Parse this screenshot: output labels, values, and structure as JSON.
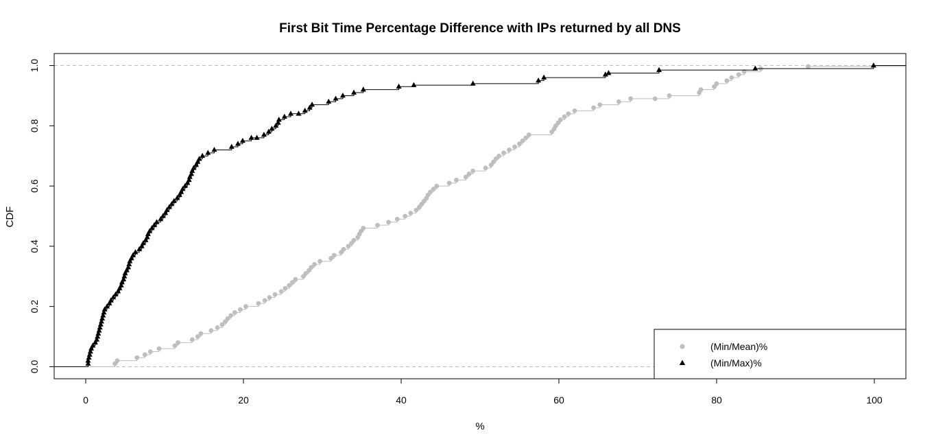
{
  "chart_data": {
    "type": "line",
    "title": "First Bit Time Percentage Difference with IPs returned by all DNS",
    "xlabel": "%",
    "ylabel": "CDF",
    "xlim": [
      -4,
      104
    ],
    "ylim": [
      -0.04,
      1.04
    ],
    "x_ticks": [
      0,
      20,
      40,
      60,
      80,
      100
    ],
    "y_ticks": [
      0.0,
      0.2,
      0.4,
      0.6,
      0.8,
      1.0
    ],
    "x_tick_labels": [
      "0",
      "20",
      "40",
      "60",
      "80",
      "100"
    ],
    "y_tick_labels": [
      "0.0",
      "0.2",
      "0.4",
      "0.6",
      "0.8",
      "1.0"
    ],
    "reference_lines_y": [
      0,
      1
    ],
    "grid": false,
    "legend_position": "bottom-right",
    "series": [
      {
        "name": "(Min/Mean)%",
        "marker": "circle",
        "color": "#bebebe",
        "points": [
          [
            3.7,
            0.01
          ],
          [
            4.0,
            0.02
          ],
          [
            6.5,
            0.03
          ],
          [
            7.5,
            0.04
          ],
          [
            8.2,
            0.05
          ],
          [
            9.3,
            0.06
          ],
          [
            11.3,
            0.07
          ],
          [
            11.7,
            0.08
          ],
          [
            13.5,
            0.09
          ],
          [
            14.2,
            0.1
          ],
          [
            14.6,
            0.11
          ],
          [
            15.9,
            0.12
          ],
          [
            16.7,
            0.13
          ],
          [
            17.3,
            0.14
          ],
          [
            17.7,
            0.15
          ],
          [
            18.0,
            0.16
          ],
          [
            18.4,
            0.17
          ],
          [
            18.9,
            0.18
          ],
          [
            19.6,
            0.19
          ],
          [
            20.3,
            0.2
          ],
          [
            21.9,
            0.21
          ],
          [
            22.7,
            0.22
          ],
          [
            23.3,
            0.23
          ],
          [
            24.0,
            0.24
          ],
          [
            24.8,
            0.25
          ],
          [
            25.3,
            0.26
          ],
          [
            25.8,
            0.27
          ],
          [
            26.2,
            0.28
          ],
          [
            26.6,
            0.29
          ],
          [
            27.6,
            0.3
          ],
          [
            27.9,
            0.31
          ],
          [
            28.3,
            0.32
          ],
          [
            28.6,
            0.33
          ],
          [
            29.0,
            0.34
          ],
          [
            29.7,
            0.35
          ],
          [
            31.1,
            0.36
          ],
          [
            31.5,
            0.37
          ],
          [
            32.4,
            0.38
          ],
          [
            32.7,
            0.39
          ],
          [
            33.3,
            0.4
          ],
          [
            33.7,
            0.41
          ],
          [
            34.0,
            0.42
          ],
          [
            34.5,
            0.43
          ],
          [
            34.7,
            0.44
          ],
          [
            34.9,
            0.45
          ],
          [
            35.2,
            0.46
          ],
          [
            37.0,
            0.47
          ],
          [
            38.4,
            0.48
          ],
          [
            39.5,
            0.49
          ],
          [
            40.5,
            0.5
          ],
          [
            41.2,
            0.51
          ],
          [
            41.9,
            0.52
          ],
          [
            42.3,
            0.53
          ],
          [
            42.6,
            0.54
          ],
          [
            42.9,
            0.55
          ],
          [
            43.2,
            0.56
          ],
          [
            43.4,
            0.57
          ],
          [
            43.7,
            0.58
          ],
          [
            44.1,
            0.59
          ],
          [
            44.5,
            0.6
          ],
          [
            46.1,
            0.61
          ],
          [
            47.0,
            0.62
          ],
          [
            48.2,
            0.63
          ],
          [
            48.6,
            0.64
          ],
          [
            49.1,
            0.65
          ],
          [
            50.7,
            0.66
          ],
          [
            51.4,
            0.67
          ],
          [
            51.7,
            0.68
          ],
          [
            52.0,
            0.69
          ],
          [
            52.4,
            0.7
          ],
          [
            53.0,
            0.71
          ],
          [
            53.7,
            0.72
          ],
          [
            54.4,
            0.73
          ],
          [
            55.0,
            0.74
          ],
          [
            55.4,
            0.75
          ],
          [
            55.8,
            0.76
          ],
          [
            56.2,
            0.77
          ],
          [
            59.1,
            0.78
          ],
          [
            59.4,
            0.79
          ],
          [
            59.6,
            0.8
          ],
          [
            59.9,
            0.81
          ],
          [
            60.2,
            0.82
          ],
          [
            60.7,
            0.83
          ],
          [
            61.2,
            0.84
          ],
          [
            62.0,
            0.85
          ],
          [
            64.4,
            0.86
          ],
          [
            65.2,
            0.87
          ],
          [
            67.6,
            0.88
          ],
          [
            69.1,
            0.89
          ],
          [
            72.2,
            0.89
          ],
          [
            74.0,
            0.9
          ],
          [
            77.8,
            0.91
          ],
          [
            78.0,
            0.92
          ],
          [
            79.7,
            0.93
          ],
          [
            80.0,
            0.94
          ],
          [
            81.3,
            0.95
          ],
          [
            81.9,
            0.96
          ],
          [
            82.8,
            0.97
          ],
          [
            83.5,
            0.98
          ],
          [
            85.6,
            0.99
          ],
          [
            91.6,
            0.997
          ]
        ]
      },
      {
        "name": "(Min/Max)%",
        "marker": "triangle",
        "color": "#000000",
        "points": [
          [
            0.3,
            0.01
          ],
          [
            0.3,
            0.02
          ],
          [
            0.4,
            0.03
          ],
          [
            0.5,
            0.04
          ],
          [
            0.6,
            0.05
          ],
          [
            0.7,
            0.06
          ],
          [
            0.9,
            0.07
          ],
          [
            1.2,
            0.08
          ],
          [
            1.4,
            0.09
          ],
          [
            1.5,
            0.1
          ],
          [
            1.6,
            0.11
          ],
          [
            1.7,
            0.12
          ],
          [
            1.8,
            0.13
          ],
          [
            1.9,
            0.14
          ],
          [
            2.0,
            0.15
          ],
          [
            2.1,
            0.16
          ],
          [
            2.2,
            0.17
          ],
          [
            2.3,
            0.18
          ],
          [
            2.4,
            0.19
          ],
          [
            2.7,
            0.2
          ],
          [
            3.0,
            0.21
          ],
          [
            3.2,
            0.22
          ],
          [
            3.5,
            0.23
          ],
          [
            3.8,
            0.24
          ],
          [
            4.1,
            0.25
          ],
          [
            4.3,
            0.26
          ],
          [
            4.5,
            0.27
          ],
          [
            4.6,
            0.28
          ],
          [
            4.8,
            0.29
          ],
          [
            4.9,
            0.3
          ],
          [
            5.0,
            0.31
          ],
          [
            5.2,
            0.32
          ],
          [
            5.4,
            0.33
          ],
          [
            5.5,
            0.34
          ],
          [
            5.6,
            0.35
          ],
          [
            5.8,
            0.36
          ],
          [
            6.0,
            0.37
          ],
          [
            6.3,
            0.38
          ],
          [
            6.8,
            0.39
          ],
          [
            7.1,
            0.4
          ],
          [
            7.3,
            0.41
          ],
          [
            7.6,
            0.42
          ],
          [
            7.8,
            0.43
          ],
          [
            7.9,
            0.44
          ],
          [
            8.1,
            0.45
          ],
          [
            8.4,
            0.46
          ],
          [
            8.7,
            0.47
          ],
          [
            9.0,
            0.48
          ],
          [
            9.5,
            0.49
          ],
          [
            9.8,
            0.5
          ],
          [
            10.1,
            0.51
          ],
          [
            10.3,
            0.52
          ],
          [
            10.6,
            0.53
          ],
          [
            10.9,
            0.54
          ],
          [
            11.2,
            0.55
          ],
          [
            11.6,
            0.56
          ],
          [
            11.9,
            0.57
          ],
          [
            12.1,
            0.58
          ],
          [
            12.3,
            0.59
          ],
          [
            12.6,
            0.6
          ],
          [
            12.9,
            0.61
          ],
          [
            13.1,
            0.62
          ],
          [
            13.2,
            0.63
          ],
          [
            13.4,
            0.64
          ],
          [
            13.5,
            0.65
          ],
          [
            13.7,
            0.66
          ],
          [
            14.0,
            0.67
          ],
          [
            14.2,
            0.68
          ],
          [
            14.4,
            0.69
          ],
          [
            14.8,
            0.7
          ],
          [
            15.5,
            0.71
          ],
          [
            16.3,
            0.72
          ],
          [
            18.5,
            0.73
          ],
          [
            19.3,
            0.74
          ],
          [
            19.9,
            0.75
          ],
          [
            21.0,
            0.76
          ],
          [
            21.7,
            0.76
          ],
          [
            22.6,
            0.77
          ],
          [
            23.2,
            0.78
          ],
          [
            23.6,
            0.79
          ],
          [
            24.1,
            0.8
          ],
          [
            24.4,
            0.81
          ],
          [
            24.5,
            0.82
          ],
          [
            25.2,
            0.83
          ],
          [
            26.0,
            0.84
          ],
          [
            27.0,
            0.84
          ],
          [
            27.8,
            0.85
          ],
          [
            28.4,
            0.86
          ],
          [
            28.7,
            0.87
          ],
          [
            30.8,
            0.88
          ],
          [
            31.7,
            0.89
          ],
          [
            32.6,
            0.9
          ],
          [
            34.0,
            0.91
          ],
          [
            35.2,
            0.92
          ],
          [
            39.7,
            0.93
          ],
          [
            41.6,
            0.935
          ],
          [
            49.1,
            0.94
          ],
          [
            57.4,
            0.95
          ],
          [
            58.1,
            0.96
          ],
          [
            65.9,
            0.97
          ],
          [
            66.3,
            0.975
          ],
          [
            72.7,
            0.985
          ],
          [
            84.9,
            0.99
          ],
          [
            99.9,
            1.0
          ]
        ]
      }
    ]
  }
}
